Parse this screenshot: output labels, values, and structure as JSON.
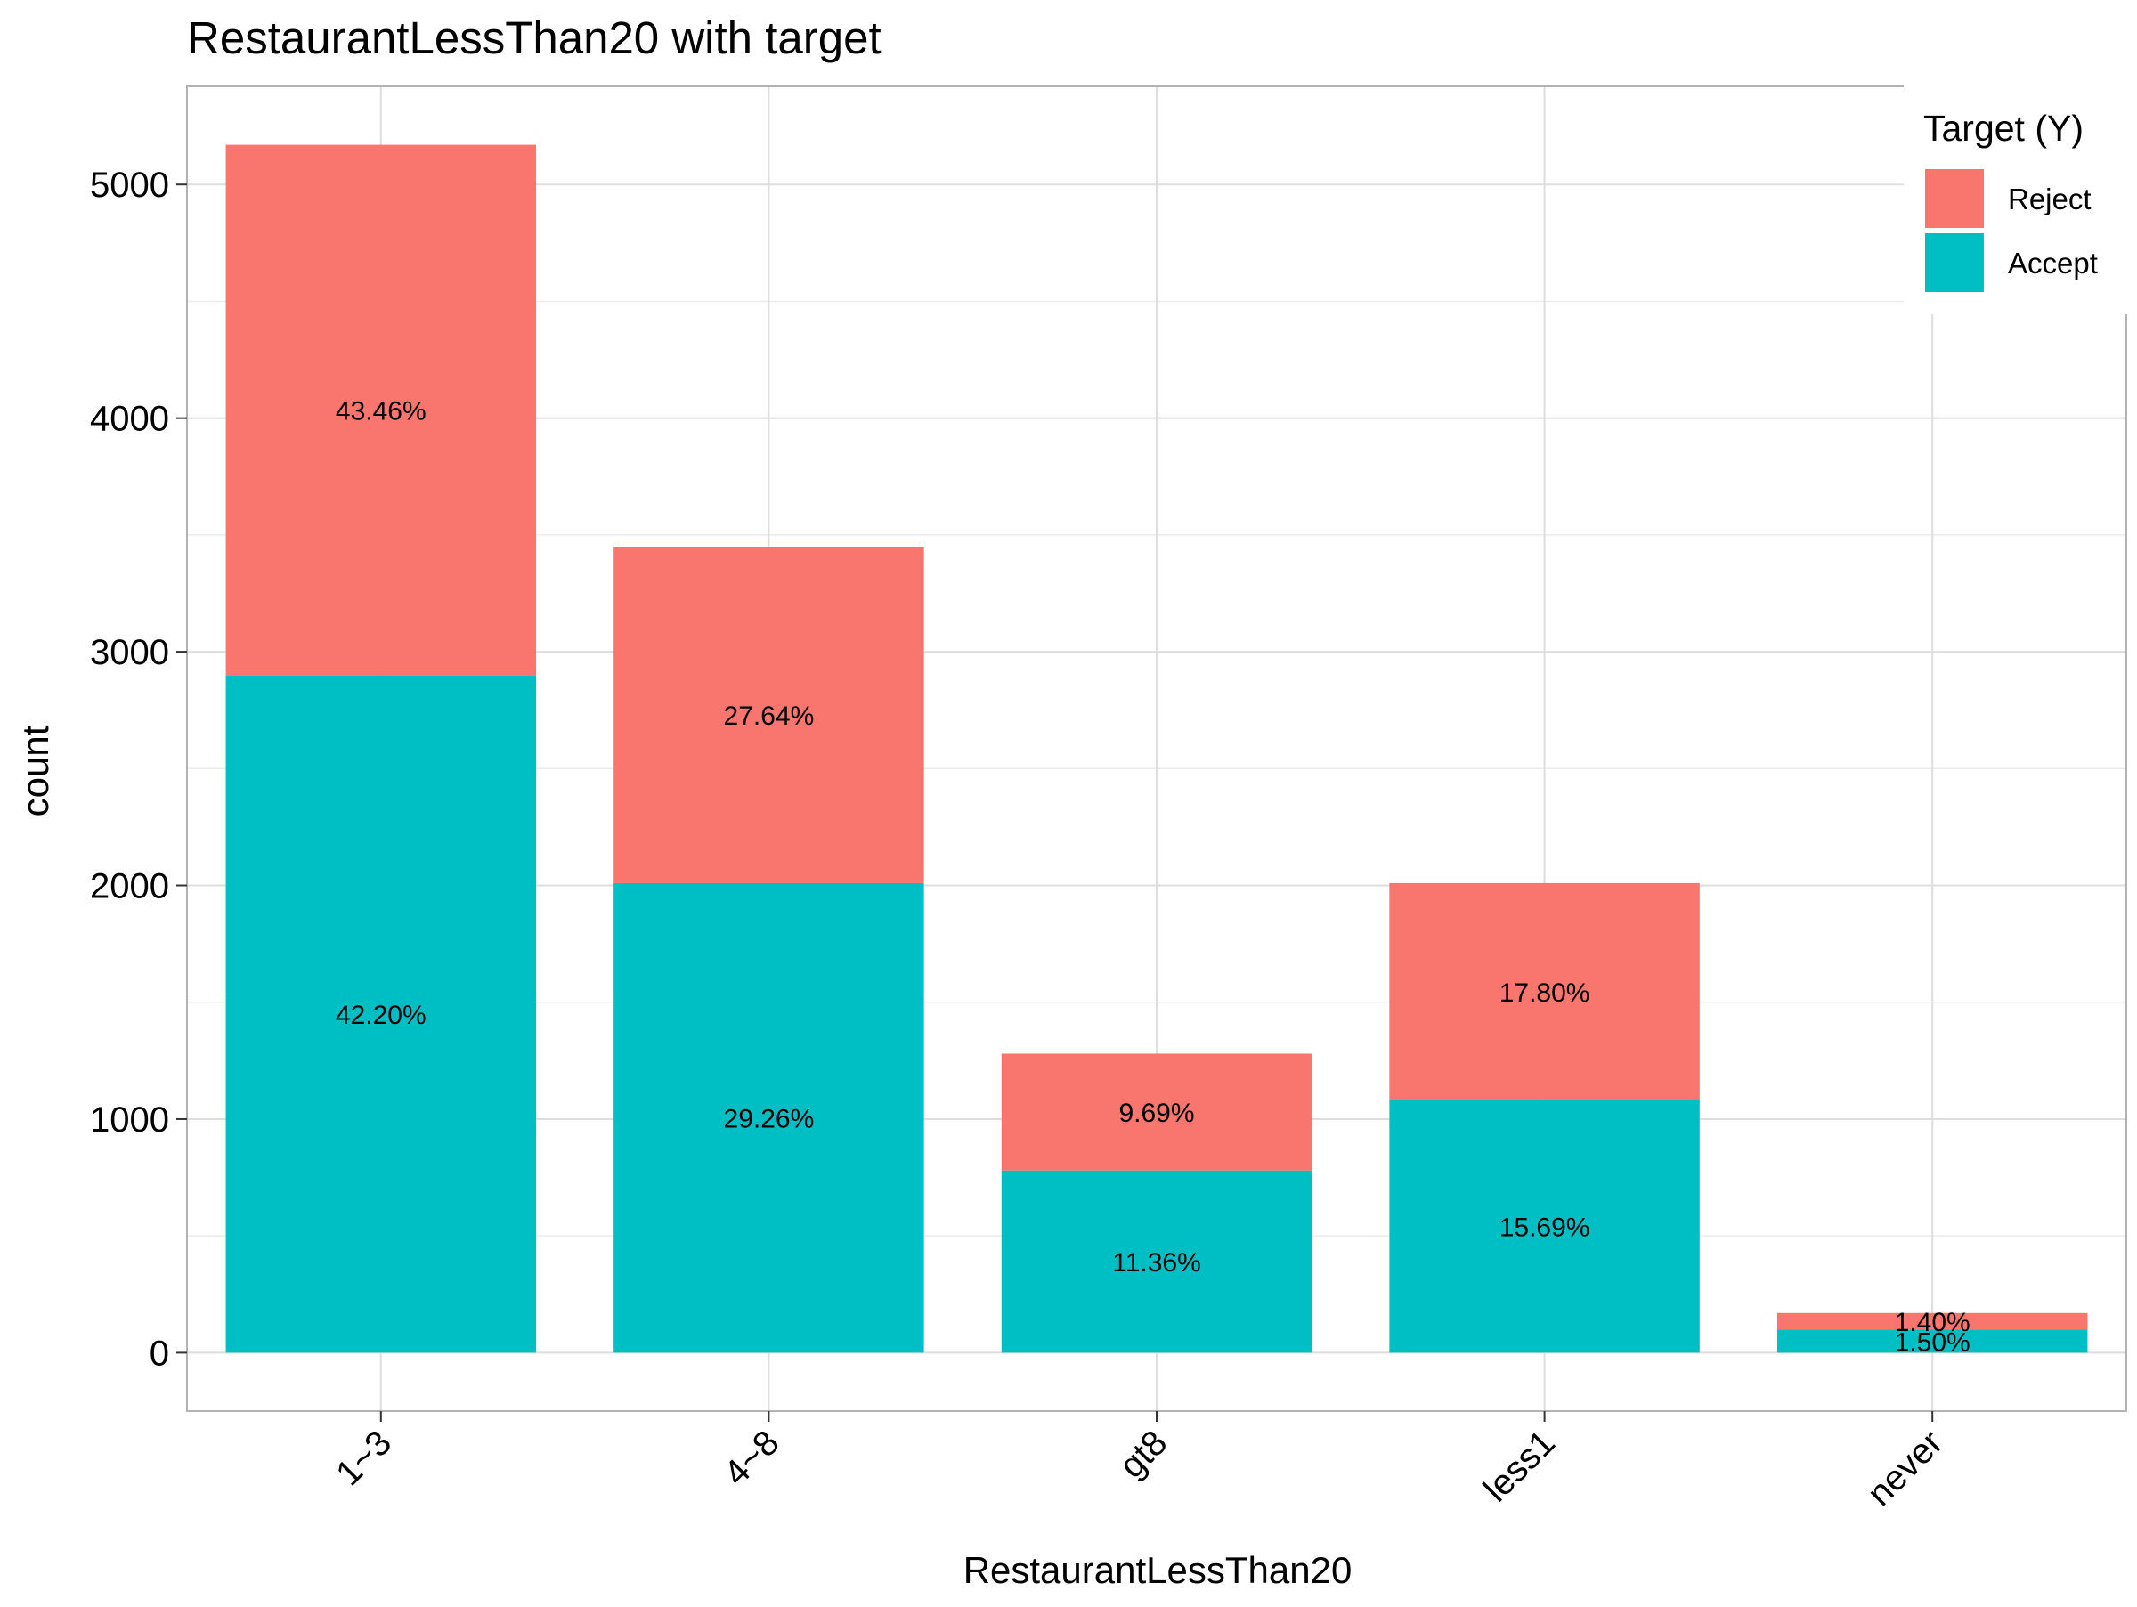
{
  "chart_data": {
    "type": "bar",
    "stacked": true,
    "title": "RestaurantLessThan20 with target",
    "xlabel": "RestaurantLessThan20",
    "ylabel": "count",
    "categories": [
      "1~3",
      "4~8",
      "gt8",
      "less1",
      "never"
    ],
    "ylim": [
      -250,
      5420
    ],
    "yticks": [
      0,
      1000,
      2000,
      3000,
      4000,
      5000
    ],
    "grid": true,
    "legend": {
      "title": "Target (Y)",
      "position": "top-right"
    },
    "series": [
      {
        "name": "Reject",
        "color": "#F8766D",
        "values": [
          2270,
          1440,
          500,
          930,
          70
        ],
        "labels": [
          "43.46%",
          "27.64%",
          "9.69%",
          "17.80%",
          "1.40%"
        ]
      },
      {
        "name": "Accept",
        "color": "#00BFC4",
        "values": [
          2900,
          2010,
          780,
          1080,
          100
        ],
        "labels": [
          "42.20%",
          "29.26%",
          "11.36%",
          "15.69%",
          "1.50%"
        ]
      }
    ]
  }
}
